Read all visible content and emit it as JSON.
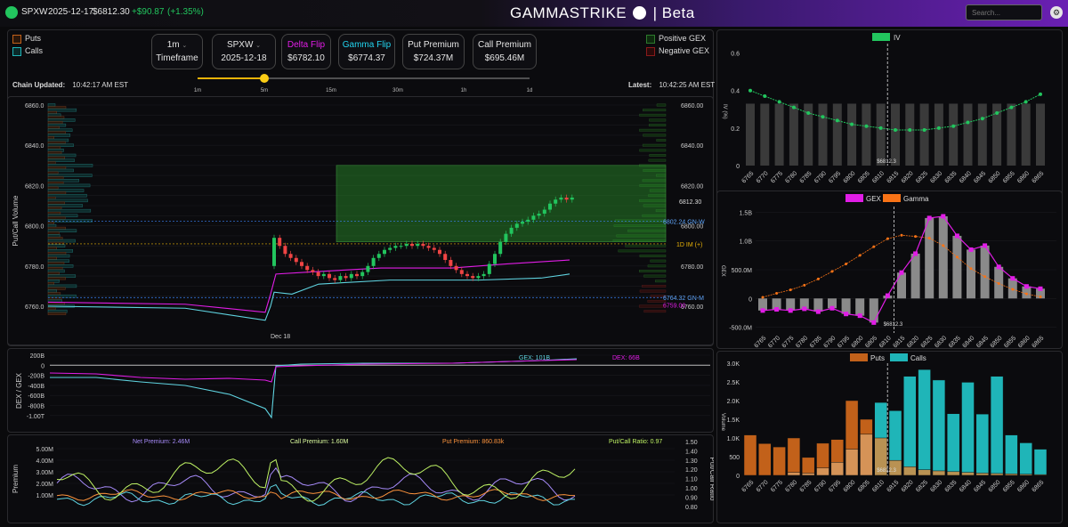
{
  "topbar": {
    "symbol": "SPXW",
    "date": "2025-12-17",
    "price": "$6812.30",
    "change": "+$90.87",
    "change_pct": "(+1.35%)",
    "brand": "GAMMASTRIKE",
    "brand_suffix": "| Beta",
    "search_placeholder": "Search..."
  },
  "legend_left": {
    "puts": "Puts",
    "calls": "Calls"
  },
  "legend_right": {
    "positive": "Positive GEX",
    "negative": "Negative GEX"
  },
  "controls": {
    "timeframe_value": "1m",
    "timeframe_label": "Timeframe",
    "symbol_value": "SPXW",
    "expiry_value": "2025-12-18",
    "delta_flip_label": "Delta Flip",
    "delta_flip_value": "$6782.10",
    "gamma_flip_label": "Gamma Flip",
    "gamma_flip_value": "$6774.37",
    "put_premium_label": "Put Premium",
    "put_premium_value": "$724.37M",
    "call_premium_label": "Call Premium",
    "call_premium_value": "$695.46M"
  },
  "status": {
    "chain_label": "Chain Updated:",
    "chain_time": "10:42:17 AM EST",
    "latest_label": "Latest:",
    "latest_time": "10:42:25 AM EST"
  },
  "slider": {
    "ticks": [
      "1m",
      "5m",
      "15m",
      "30m",
      "1h",
      "1d"
    ],
    "selected": "5m"
  },
  "main_chart": {
    "y_ticks": [
      "6860.0",
      "6840.0",
      "6820.0",
      "6800.0",
      "6780.0",
      "6760.0"
    ],
    "y_ticks_right": [
      "6860.00",
      "6840.00",
      "6820.00",
      "6800.00",
      "6780.00",
      "6760.00"
    ],
    "ylabel": "Put/Call Volume",
    "x_label": "Dec 18",
    "price_tag": "6812.30",
    "gn_w_tag": "6802.24 GN-W",
    "im_tag": "1D IM (+)",
    "gn_m_tag": "6764.32 GN-M",
    "low_tag": "6759.00"
  },
  "dex_chart": {
    "ylabel": "DEX / GEX",
    "y_ticks": [
      "200B",
      "0",
      "-200B",
      "-400B",
      "-600B",
      "-800B",
      "-1.00T"
    ],
    "gex_label": "GEX: 101B",
    "dex_label": "DEX: 66B"
  },
  "premium_chart": {
    "ylabel": "Premium",
    "ylabel_right": "Put/Call Ratio",
    "y_ticks": [
      "5.00M",
      "4.00M",
      "3.00M",
      "2.00M",
      "1.00M"
    ],
    "y_ticks_right": [
      "1.50",
      "1.40",
      "1.30",
      "1.20",
      "1.10",
      "1.00",
      "0.90",
      "0.80"
    ],
    "net_premium": "Net Premium: 2.46M",
    "call_premium": "Call Premium: 1.60M",
    "put_premium": "Put Premium: 860.83k",
    "pc_ratio": "Put/Call Ratio: 0.97"
  },
  "strikes": [
    "6765",
    "6770",
    "6775",
    "6780",
    "6785",
    "6790",
    "6795",
    "6800",
    "6805",
    "6810",
    "6815",
    "6820",
    "6825",
    "6830",
    "6835",
    "6840",
    "6845",
    "6850",
    "6855",
    "6860",
    "6865"
  ],
  "price_marker": "$6812.3",
  "chart_data": [
    {
      "type": "bar",
      "title": "",
      "legend": [
        "IV"
      ],
      "ylabel": "IV (%)",
      "ylim": [
        0,
        0.65
      ],
      "y_ticks": [
        "0",
        "0.2",
        "0.4",
        "0.6"
      ],
      "categories": [
        "6765",
        "6770",
        "6775",
        "6780",
        "6785",
        "6790",
        "6795",
        "6800",
        "6805",
        "6810",
        "6815",
        "6820",
        "6825",
        "6830",
        "6835",
        "6840",
        "6845",
        "6850",
        "6855",
        "6860",
        "6865"
      ],
      "series": [
        {
          "name": "IV",
          "values": [
            0.4,
            0.37,
            0.34,
            0.31,
            0.28,
            0.26,
            0.24,
            0.22,
            0.21,
            0.2,
            0.19,
            0.19,
            0.19,
            0.2,
            0.21,
            0.23,
            0.25,
            0.28,
            0.31,
            0.34,
            0.38
          ]
        }
      ],
      "colors": {
        "line": "#22c55e",
        "bar": "#3a3a3a"
      }
    },
    {
      "type": "bar",
      "legend": [
        "GEX",
        "Gamma"
      ],
      "ylabel": "GEX",
      "ylim": [
        -600,
        1600
      ],
      "y_ticks": [
        "-500.0M",
        "0",
        "500.0M",
        "1.0B",
        "1.5B"
      ],
      "categories": [
        "6765",
        "6770",
        "6775",
        "6780",
        "6785",
        "6790",
        "6795",
        "6800",
        "6805",
        "6810",
        "6815",
        "6820",
        "6825",
        "6830",
        "6835",
        "6840",
        "6845",
        "6850",
        "6855",
        "6860",
        "6865"
      ],
      "series": [
        {
          "name": "GEX",
          "values": [
            -210,
            -190,
            -210,
            -180,
            -230,
            -170,
            -270,
            -300,
            -420,
            50,
            450,
            780,
            1400,
            1430,
            1090,
            850,
            920,
            550,
            350,
            210,
            170
          ]
        },
        {
          "name": "Gamma",
          "values": [
            20,
            90,
            150,
            230,
            340,
            470,
            600,
            750,
            900,
            1040,
            1100,
            1080,
            1050,
            920,
            720,
            520,
            380,
            260,
            160,
            80,
            30
          ]
        }
      ],
      "colors": {
        "gex": "#e11de6",
        "gamma": "#f97316",
        "bar": "#8a8a8a"
      }
    },
    {
      "type": "bar",
      "legend": [
        "Puts",
        "Calls"
      ],
      "ylabel": "Volume",
      "ylim": [
        0,
        3000
      ],
      "y_ticks": [
        "0",
        "500",
        "1.0K",
        "1.5K",
        "2.0K",
        "2.5K",
        "3.0K"
      ],
      "categories": [
        "6765",
        "6770",
        "6775",
        "6780",
        "6785",
        "6790",
        "6795",
        "6800",
        "6805",
        "6810",
        "6815",
        "6820",
        "6825",
        "6830",
        "6835",
        "6840",
        "6845",
        "6850",
        "6855",
        "6860",
        "6865"
      ],
      "series": [
        {
          "name": "Puts",
          "values": [
            1080,
            850,
            760,
            1000,
            480,
            860,
            960,
            2000,
            1500,
            1000,
            400,
            230,
            150,
            120,
            100,
            80,
            60,
            50,
            40,
            30,
            20
          ]
        },
        {
          "name": "Calls",
          "values": [
            0,
            0,
            0,
            80,
            60,
            200,
            350,
            700,
            1100,
            1950,
            1730,
            2650,
            2830,
            2550,
            1650,
            2490,
            1640,
            2650,
            1080,
            870,
            700
          ]
        }
      ],
      "colors": {
        "puts": "#c2611a",
        "calls": "#1fb5b8"
      }
    }
  ]
}
